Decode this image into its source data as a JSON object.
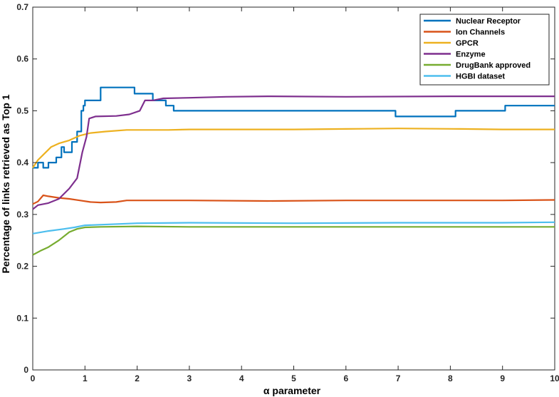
{
  "chart_data": {
    "type": "line",
    "xlabel": "α parameter",
    "ylabel": "Percentage of links retrieved as Top 1",
    "xlim": [
      0,
      10
    ],
    "ylim": [
      0,
      0.7
    ],
    "xticks": [
      0,
      1,
      2,
      3,
      4,
      5,
      6,
      7,
      8,
      9,
      10
    ],
    "yticks": [
      0,
      0.1,
      0.2,
      0.3,
      0.4,
      0.5,
      0.6,
      0.7
    ],
    "grid": false,
    "legend_position": "top-right",
    "series": [
      {
        "name": "Nuclear Receptor",
        "color": "#0072bd",
        "step": true,
        "points": [
          [
            0,
            0.39
          ],
          [
            0.1,
            0.4
          ],
          [
            0.2,
            0.39
          ],
          [
            0.3,
            0.4
          ],
          [
            0.45,
            0.41
          ],
          [
            0.55,
            0.43
          ],
          [
            0.6,
            0.42
          ],
          [
            0.75,
            0.44
          ],
          [
            0.85,
            0.46
          ],
          [
            0.93,
            0.5
          ],
          [
            0.97,
            0.51
          ],
          [
            1.0,
            0.52
          ],
          [
            1.3,
            0.545
          ],
          [
            1.95,
            0.533
          ],
          [
            2.3,
            0.52
          ],
          [
            2.55,
            0.51
          ],
          [
            2.7,
            0.5
          ],
          [
            6.95,
            0.489
          ],
          [
            8.1,
            0.5
          ],
          [
            9.05,
            0.51
          ],
          [
            10,
            0.51
          ]
        ]
      },
      {
        "name": "Ion Channels",
        "color": "#d95319",
        "step": false,
        "points": [
          [
            0,
            0.32
          ],
          [
            0.1,
            0.325
          ],
          [
            0.2,
            0.337
          ],
          [
            0.3,
            0.335
          ],
          [
            0.5,
            0.332
          ],
          [
            0.7,
            0.33
          ],
          [
            0.9,
            0.327
          ],
          [
            1.1,
            0.324
          ],
          [
            1.3,
            0.323
          ],
          [
            1.6,
            0.324
          ],
          [
            1.8,
            0.327
          ],
          [
            3,
            0.327
          ],
          [
            4.5,
            0.326
          ],
          [
            6,
            0.327
          ],
          [
            7.5,
            0.327
          ],
          [
            9,
            0.327
          ],
          [
            10,
            0.328
          ]
        ]
      },
      {
        "name": "GPCR",
        "color": "#edb120",
        "step": false,
        "points": [
          [
            0,
            0.39
          ],
          [
            0.1,
            0.405
          ],
          [
            0.2,
            0.415
          ],
          [
            0.35,
            0.43
          ],
          [
            0.5,
            0.437
          ],
          [
            0.7,
            0.443
          ],
          [
            0.9,
            0.452
          ],
          [
            1.1,
            0.457
          ],
          [
            1.4,
            0.46
          ],
          [
            1.8,
            0.463
          ],
          [
            2.2,
            0.463
          ],
          [
            2.6,
            0.463
          ],
          [
            3,
            0.464
          ],
          [
            5,
            0.464
          ],
          [
            6,
            0.465
          ],
          [
            7,
            0.466
          ],
          [
            8.2,
            0.465
          ],
          [
            9,
            0.464
          ],
          [
            10,
            0.464
          ]
        ]
      },
      {
        "name": "Enzyme",
        "color": "#7e2f8e",
        "step": false,
        "points": [
          [
            0,
            0.31
          ],
          [
            0.1,
            0.318
          ],
          [
            0.3,
            0.322
          ],
          [
            0.5,
            0.33
          ],
          [
            0.7,
            0.35
          ],
          [
            0.85,
            0.37
          ],
          [
            0.95,
            0.42
          ],
          [
            1.03,
            0.45
          ],
          [
            1.08,
            0.485
          ],
          [
            1.2,
            0.489
          ],
          [
            1.6,
            0.49
          ],
          [
            1.85,
            0.493
          ],
          [
            2.05,
            0.5
          ],
          [
            2.15,
            0.52
          ],
          [
            2.3,
            0.52
          ],
          [
            2.5,
            0.524
          ],
          [
            3,
            0.525
          ],
          [
            3.7,
            0.527
          ],
          [
            4.5,
            0.528
          ],
          [
            6,
            0.527
          ],
          [
            8,
            0.528
          ],
          [
            10,
            0.528
          ]
        ]
      },
      {
        "name": "DrugBank approved",
        "color": "#77ac30",
        "step": false,
        "points": [
          [
            0,
            0.222
          ],
          [
            0.15,
            0.23
          ],
          [
            0.3,
            0.237
          ],
          [
            0.5,
            0.25
          ],
          [
            0.7,
            0.266
          ],
          [
            0.85,
            0.272
          ],
          [
            1.0,
            0.275
          ],
          [
            1.3,
            0.276
          ],
          [
            2,
            0.277
          ],
          [
            3,
            0.276
          ],
          [
            5,
            0.276
          ],
          [
            7,
            0.276
          ],
          [
            9,
            0.276
          ],
          [
            10,
            0.276
          ]
        ]
      },
      {
        "name": "HGBI dataset",
        "color": "#4dbeee",
        "step": false,
        "points": [
          [
            0,
            0.263
          ],
          [
            0.3,
            0.268
          ],
          [
            0.6,
            0.272
          ],
          [
            0.8,
            0.275
          ],
          [
            1.0,
            0.279
          ],
          [
            1.5,
            0.281
          ],
          [
            2,
            0.283
          ],
          [
            3,
            0.284
          ],
          [
            5,
            0.283
          ],
          [
            7,
            0.284
          ],
          [
            9,
            0.284
          ],
          [
            10,
            0.285
          ]
        ]
      }
    ]
  }
}
